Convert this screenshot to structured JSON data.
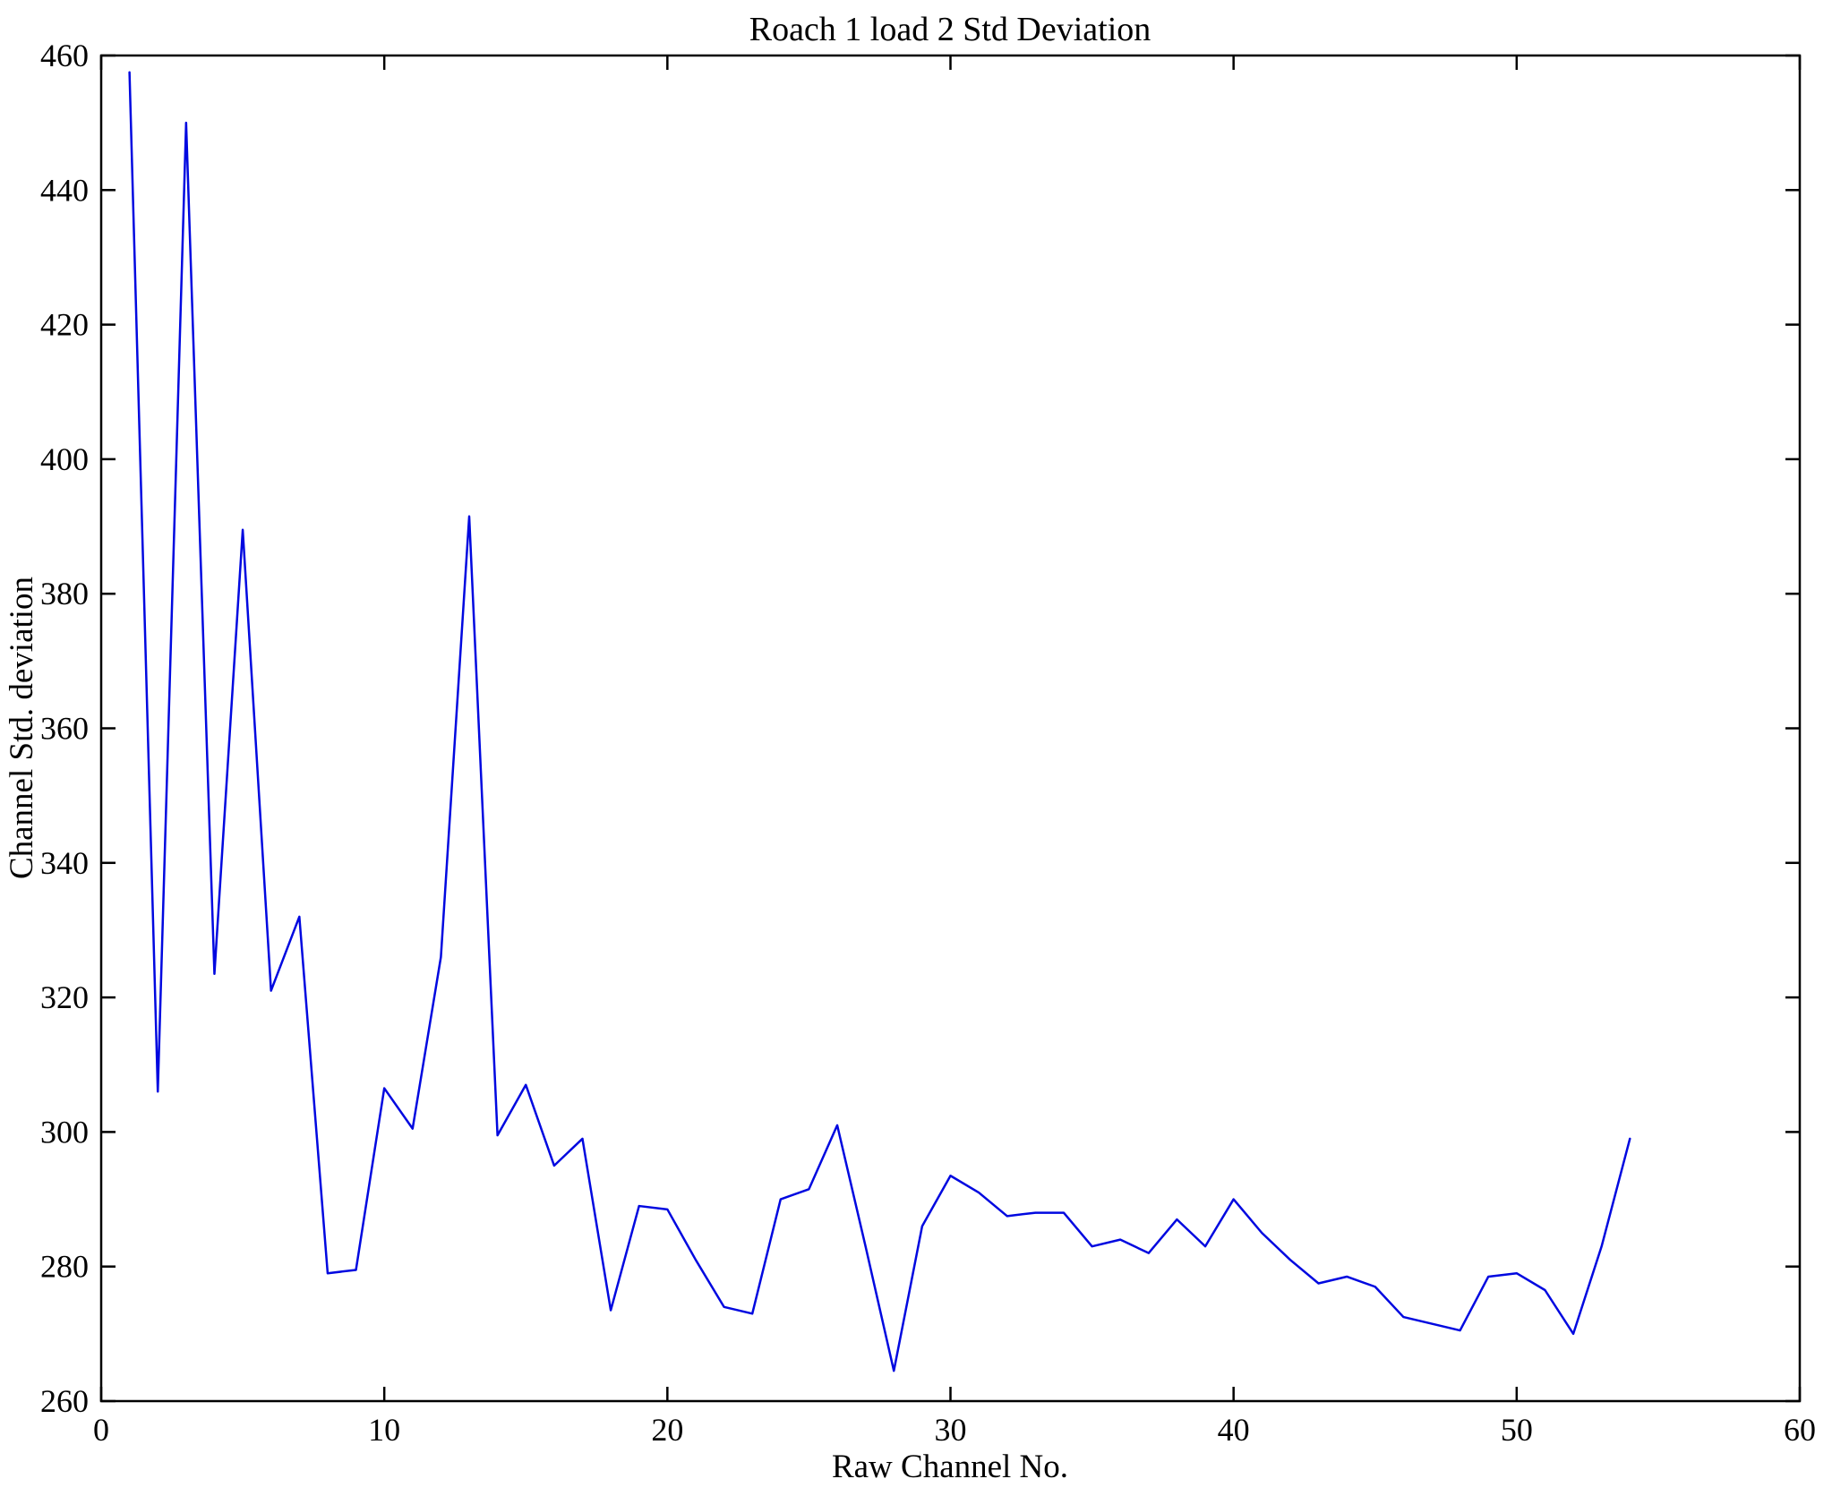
{
  "chart_data": {
    "type": "line",
    "title": "Roach 1 load 2 Std Deviation",
    "xlabel": "Raw Channel No.",
    "ylabel": "Channel Std. deviation",
    "xlim": [
      0,
      60
    ],
    "ylim": [
      260,
      460
    ],
    "xticks": [
      0,
      10,
      20,
      30,
      40,
      50,
      60
    ],
    "yticks": [
      260,
      280,
      300,
      320,
      340,
      360,
      380,
      400,
      420,
      440,
      460
    ],
    "grid": false,
    "legend": null,
    "line_color": "#0008e0",
    "frame_color": "#000000",
    "x": [
      1,
      2,
      3,
      4,
      5,
      6,
      7,
      8,
      9,
      10,
      11,
      12,
      13,
      14,
      15,
      16,
      17,
      18,
      19,
      20,
      21,
      22,
      23,
      24,
      25,
      26,
      27,
      28,
      29,
      30,
      31,
      32,
      33,
      34,
      35,
      36,
      37,
      38,
      39,
      40,
      41,
      42,
      43,
      44,
      45,
      46,
      47,
      48,
      49,
      50,
      51,
      52,
      53,
      54
    ],
    "y": [
      457.5,
      306,
      450,
      323.5,
      389.5,
      321,
      332,
      279,
      279.5,
      306.5,
      300.5,
      326,
      391.5,
      299.5,
      307,
      295,
      299,
      273.5,
      289,
      288.5,
      281,
      274,
      273,
      290,
      291.5,
      301,
      283,
      264.5,
      286,
      293.5,
      291,
      287.5,
      288,
      288,
      283,
      284,
      282,
      287,
      283,
      290,
      285,
      281,
      277.5,
      278.5,
      277,
      272.5,
      271.5,
      270.5,
      278.5,
      279,
      276.5,
      270,
      283,
      299
    ]
  }
}
